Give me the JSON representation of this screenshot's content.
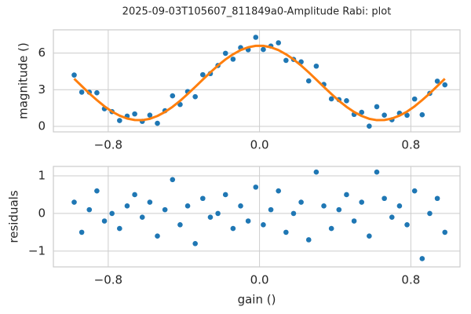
{
  "title": "2025-09-03T105607_811849a0-Amplitude Rabi: plot",
  "chart_data": [
    {
      "type": "scatter",
      "ylabel": "magnitude ()",
      "x": [
        -0.98,
        -0.94,
        -0.9,
        -0.86,
        -0.82,
        -0.78,
        -0.74,
        -0.7,
        -0.66,
        -0.62,
        -0.58,
        -0.54,
        -0.5,
        -0.46,
        -0.42,
        -0.38,
        -0.34,
        -0.3,
        -0.26,
        -0.22,
        -0.18,
        -0.14,
        -0.1,
        -0.06,
        -0.02,
        0.02,
        0.06,
        0.1,
        0.14,
        0.18,
        0.22,
        0.26,
        0.3,
        0.34,
        0.38,
        0.42,
        0.46,
        0.5,
        0.54,
        0.58,
        0.62,
        0.66,
        0.7,
        0.74,
        0.78,
        0.82,
        0.86,
        0.9,
        0.94,
        0.98
      ],
      "series": [
        {
          "kind": "scatter",
          "color": "#1f77b4",
          "values": [
            4.2,
            2.8,
            2.8,
            2.75,
            1.44,
            1.21,
            0.48,
            0.84,
            1.02,
            0.41,
            0.92,
            0.25,
            1.28,
            2.5,
            1.79,
            2.85,
            2.43,
            4.23,
            4.32,
            4.98,
            5.98,
            5.5,
            6.44,
            6.27,
            7.29,
            6.29,
            6.57,
            6.84,
            5.4,
            5.48,
            5.28,
            3.72,
            4.93,
            3.43,
            2.25,
            2.19,
            2.1,
            0.98,
            1.15,
            0.02,
            1.61,
            0.92,
            0.54,
            1.08,
            0.91,
            2.24,
            0.95,
            2.7,
            3.7,
            3.4
          ]
        },
        {
          "kind": "line",
          "color": "#ff7f0e",
          "values": [
            3.9,
            3.3,
            2.7,
            2.15,
            1.64,
            1.21,
            0.88,
            0.64,
            0.52,
            0.51,
            0.62,
            0.85,
            1.18,
            1.6,
            2.09,
            2.65,
            3.23,
            3.83,
            4.42,
            4.98,
            5.48,
            5.9,
            6.24,
            6.47,
            6.59,
            6.59,
            6.47,
            6.24,
            5.9,
            5.48,
            4.98,
            4.42,
            3.83,
            3.23,
            2.65,
            2.09,
            1.6,
            1.18,
            0.85,
            0.62,
            0.51,
            0.52,
            0.64,
            0.88,
            1.21,
            1.64,
            2.15,
            2.7,
            3.3,
            3.9
          ]
        }
      ],
      "xlim": [
        -1.09,
        1.06
      ],
      "ylim": [
        -0.45,
        7.9
      ],
      "xticks": [
        {
          "value": -0.8,
          "label": "−0.8"
        },
        {
          "value": 0,
          "label": "0.0"
        },
        0.8
      ],
      "yticks": [
        0,
        3,
        6
      ],
      "grid": true
    },
    {
      "type": "scatter",
      "ylabel": "residuals",
      "xlabel": "gain ()",
      "x": [
        -0.98,
        -0.94,
        -0.9,
        -0.86,
        -0.82,
        -0.78,
        -0.74,
        -0.7,
        -0.66,
        -0.62,
        -0.58,
        -0.54,
        -0.5,
        -0.46,
        -0.42,
        -0.38,
        -0.34,
        -0.3,
        -0.26,
        -0.22,
        -0.18,
        -0.14,
        -0.1,
        -0.06,
        -0.02,
        0.02,
        0.06,
        0.1,
        0.14,
        0.18,
        0.22,
        0.26,
        0.3,
        0.34,
        0.38,
        0.42,
        0.46,
        0.5,
        0.54,
        0.58,
        0.62,
        0.66,
        0.7,
        0.74,
        0.78,
        0.82,
        0.86,
        0.9,
        0.94,
        0.98
      ],
      "series": [
        {
          "kind": "scatter",
          "color": "#1f77b4",
          "values": [
            0.3,
            -0.5,
            0.1,
            0.6,
            -0.2,
            0,
            -0.4,
            0.2,
            0.5,
            -0.1,
            0.3,
            -0.6,
            0.1,
            0.9,
            -0.3,
            0.2,
            -0.8,
            0.4,
            -0.1,
            0,
            0.5,
            -0.4,
            0.2,
            -0.2,
            0.7,
            -0.3,
            0.1,
            0.6,
            -0.5,
            0,
            0.3,
            -0.7,
            1.1,
            0.2,
            -0.4,
            0.1,
            0.5,
            -0.2,
            0.3,
            -0.6,
            1.1,
            0.4,
            -0.1,
            0.2,
            -0.3,
            0.6,
            -1.2,
            0,
            0.4,
            -0.5
          ]
        }
      ],
      "xlim": [
        -1.09,
        1.06
      ],
      "ylim": [
        -1.42,
        1.25
      ],
      "xticks": [
        {
          "value": -0.8,
          "label": "−0.8"
        },
        {
          "value": 0,
          "label": "0.0"
        },
        0.8
      ],
      "yticks": [
        {
          "value": -1,
          "label": "−1"
        },
        0,
        1
      ],
      "grid": true
    }
  ]
}
